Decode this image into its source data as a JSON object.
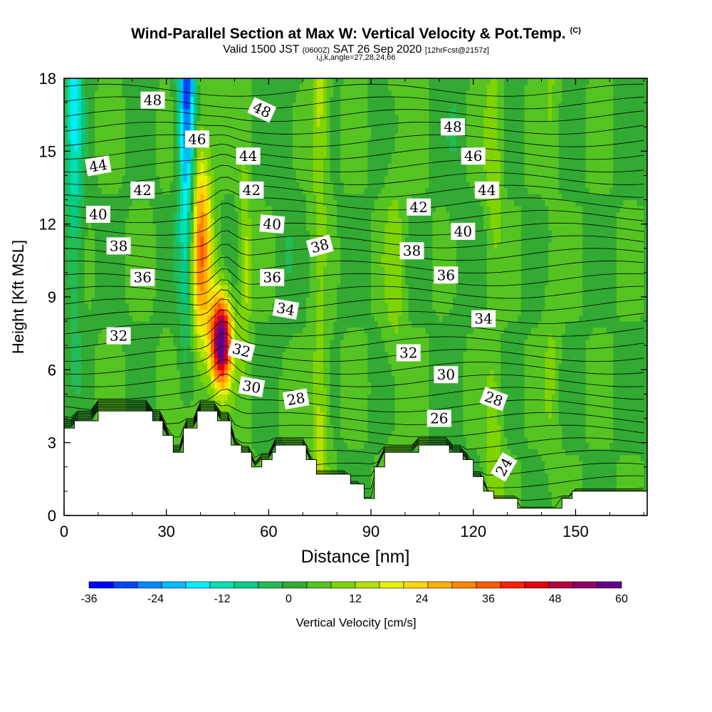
{
  "title": "Wind-Parallel Section at Max W: Vertical Velocity & Pot.Temp.",
  "title_mark": "(C)",
  "subtitle": {
    "main_a": "Valid 1500 JST",
    "small_a": "(0600Z)",
    "main_b": "SAT 26 Sep 2020",
    "small_b": "[12hrFcst@2157z]"
  },
  "subtitle2": "i,j,k,angle=27,28,24,66",
  "chart_data": {
    "type": "heatmap",
    "xlabel": "Distance [nm]",
    "ylabel": "Height [Kft MSL]",
    "xlim": [
      0,
      171
    ],
    "ylim": [
      0,
      18
    ],
    "x_ticks": [
      0,
      30,
      60,
      90,
      120,
      150
    ],
    "y_ticks": [
      0,
      3,
      6,
      9,
      12,
      15,
      18
    ],
    "grid": false,
    "colorbar": {
      "label": "Vertical Velocity [cm/s]",
      "tick_labels": [
        "-36",
        "-24",
        "-12",
        "0",
        "12",
        "24",
        "36",
        "48",
        "60"
      ],
      "colors": [
        "#0000ff",
        "#0044ff",
        "#0088ff",
        "#00bbff",
        "#00eeff",
        "#00e0b0",
        "#00cc88",
        "#22bb55",
        "#33aa33",
        "#55c422",
        "#7fd400",
        "#b6e000",
        "#e6f200",
        "#ffd800",
        "#ffb000",
        "#ff8800",
        "#ff5a00",
        "#ff2000",
        "#e00010",
        "#b80040",
        "#900068",
        "#62008a"
      ]
    },
    "wind_max": {
      "x": 46,
      "y": 7.2,
      "value": 60
    },
    "updraft_bands": [
      {
        "x": 40,
        "w": 3.2,
        "value": 30
      },
      {
        "x": 53,
        "w": 1.8,
        "value": 11
      },
      {
        "x": 75,
        "w": 2.5,
        "value": 12
      },
      {
        "x": 97,
        "w": 3.0,
        "value": 7
      },
      {
        "x": 126,
        "w": 2.5,
        "value": 9
      },
      {
        "x": 143,
        "w": 2.5,
        "value": 5
      }
    ],
    "downdraft_bands": [
      {
        "x": 36,
        "w": 2.5,
        "value": -26
      },
      {
        "x": 3,
        "w": 2.5,
        "value": -14
      },
      {
        "x": 65,
        "w": 3.0,
        "value": -3
      },
      {
        "x": 115,
        "w": 3.0,
        "value": -2
      }
    ],
    "theta_contour_labels": [
      {
        "text": "48",
        "x": 26,
        "y": 17.1,
        "angle": 0
      },
      {
        "text": "48",
        "x": 58,
        "y": 16.7,
        "angle": 25
      },
      {
        "text": "48",
        "x": 114,
        "y": 16.0,
        "angle": 0
      },
      {
        "text": "46",
        "x": 39,
        "y": 15.5,
        "angle": 0
      },
      {
        "text": "46",
        "x": 120,
        "y": 14.8,
        "angle": 0
      },
      {
        "text": "44",
        "x": 10,
        "y": 14.4,
        "angle": -10
      },
      {
        "text": "44",
        "x": 54,
        "y": 14.8,
        "angle": 0
      },
      {
        "text": "44",
        "x": 124,
        "y": 13.4,
        "angle": 0
      },
      {
        "text": "42",
        "x": 23,
        "y": 13.4,
        "angle": 0
      },
      {
        "text": "42",
        "x": 55,
        "y": 13.4,
        "angle": 0
      },
      {
        "text": "42",
        "x": 104,
        "y": 12.7,
        "angle": 0
      },
      {
        "text": "40",
        "x": 10,
        "y": 12.4,
        "angle": 0
      },
      {
        "text": "40",
        "x": 61,
        "y": 12.0,
        "angle": 5
      },
      {
        "text": "40",
        "x": 117,
        "y": 11.7,
        "angle": 0
      },
      {
        "text": "38",
        "x": 16,
        "y": 11.1,
        "angle": 0
      },
      {
        "text": "38",
        "x": 75,
        "y": 11.1,
        "angle": -15
      },
      {
        "text": "38",
        "x": 102,
        "y": 10.9,
        "angle": 0
      },
      {
        "text": "36",
        "x": 23,
        "y": 9.8,
        "angle": 0
      },
      {
        "text": "36",
        "x": 61,
        "y": 9.8,
        "angle": 0
      },
      {
        "text": "36",
        "x": 112,
        "y": 9.9,
        "angle": 0
      },
      {
        "text": "34",
        "x": 65,
        "y": 8.5,
        "angle": 10
      },
      {
        "text": "34",
        "x": 123,
        "y": 8.1,
        "angle": 0
      },
      {
        "text": "32",
        "x": 16,
        "y": 7.4,
        "angle": 0
      },
      {
        "text": "32",
        "x": 52,
        "y": 6.8,
        "angle": 15
      },
      {
        "text": "32",
        "x": 101,
        "y": 6.7,
        "angle": 0
      },
      {
        "text": "30",
        "x": 55,
        "y": 5.3,
        "angle": 10
      },
      {
        "text": "30",
        "x": 112,
        "y": 5.8,
        "angle": 0
      },
      {
        "text": "28",
        "x": 68,
        "y": 4.8,
        "angle": -10
      },
      {
        "text": "28",
        "x": 126,
        "y": 4.8,
        "angle": 20
      },
      {
        "text": "26",
        "x": 110,
        "y": 4.0,
        "angle": 0
      },
      {
        "text": "24",
        "x": 129,
        "y": 2.0,
        "angle": -60
      }
    ],
    "terrain": [
      [
        0,
        3.6
      ],
      [
        3,
        3.6
      ],
      [
        3,
        3.9
      ],
      [
        10,
        3.9
      ],
      [
        10,
        4.3
      ],
      [
        26,
        4.3
      ],
      [
        26,
        3.9
      ],
      [
        29,
        3.9
      ],
      [
        29,
        3.3
      ],
      [
        32,
        3.3
      ],
      [
        32,
        2.6
      ],
      [
        35,
        2.6
      ],
      [
        35,
        3.6
      ],
      [
        39,
        3.6
      ],
      [
        39,
        4.3
      ],
      [
        45,
        4.3
      ],
      [
        45,
        3.9
      ],
      [
        49,
        3.9
      ],
      [
        49,
        2.9
      ],
      [
        52,
        2.9
      ],
      [
        52,
        2.6
      ],
      [
        55,
        2.6
      ],
      [
        55,
        2.0
      ],
      [
        58,
        2.0
      ],
      [
        58,
        2.3
      ],
      [
        61,
        2.3
      ],
      [
        61,
        2.6
      ],
      [
        62,
        2.6
      ],
      [
        62,
        2.9
      ],
      [
        71,
        2.9
      ],
      [
        71,
        2.3
      ],
      [
        74,
        2.3
      ],
      [
        74,
        1.7
      ],
      [
        84,
        1.7
      ],
      [
        84,
        1.3
      ],
      [
        88,
        1.3
      ],
      [
        88,
        0.7
      ],
      [
        91,
        0.7
      ],
      [
        91,
        2.0
      ],
      [
        94,
        2.0
      ],
      [
        94,
        2.6
      ],
      [
        104,
        2.6
      ],
      [
        104,
        2.9
      ],
      [
        113,
        2.9
      ],
      [
        113,
        2.6
      ],
      [
        117,
        2.6
      ],
      [
        117,
        2.3
      ],
      [
        120,
        2.3
      ],
      [
        120,
        1.6
      ],
      [
        123,
        1.6
      ],
      [
        123,
        1.0
      ],
      [
        126,
        1.0
      ],
      [
        126,
        0.7
      ],
      [
        133,
        0.7
      ],
      [
        133,
        0.3
      ],
      [
        146,
        0.3
      ],
      [
        146,
        0.7
      ],
      [
        149,
        0.7
      ],
      [
        149,
        1.0
      ],
      [
        171,
        1.0
      ]
    ]
  }
}
